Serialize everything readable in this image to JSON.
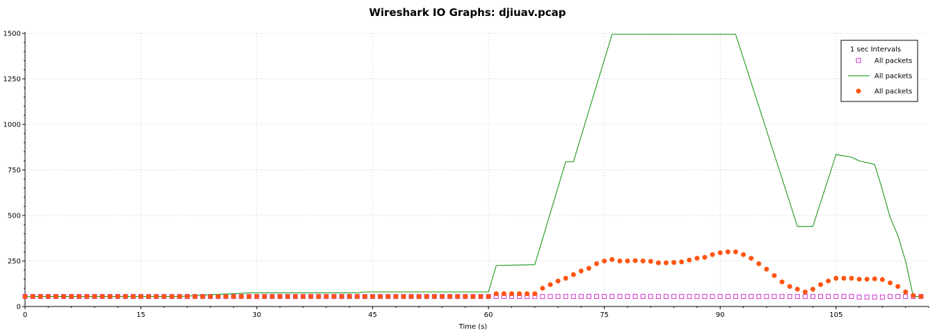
{
  "chart_data": {
    "type": "line",
    "title": "Wireshark IO Graphs: djiuav.pcap",
    "xlabel": "Time (s)",
    "ylabel": "",
    "xlim": [
      0,
      117
    ],
    "ylim": [
      0,
      1500
    ],
    "x_ticks": [
      0,
      15,
      30,
      45,
      60,
      75,
      90,
      105
    ],
    "y_ticks": [
      0,
      250,
      500,
      750,
      1000,
      1250,
      1500
    ],
    "grid": true,
    "legend_title": "1 sec Intervals",
    "legend_position": "top-right",
    "series": [
      {
        "name": "All packets",
        "style": "square-markers",
        "color": "#cc33cc",
        "x": [
          0,
          1,
          2,
          3,
          4,
          5,
          6,
          7,
          8,
          9,
          10,
          11,
          12,
          13,
          14,
          15,
          16,
          17,
          18,
          19,
          20,
          21,
          22,
          23,
          24,
          25,
          26,
          27,
          28,
          29,
          30,
          31,
          32,
          33,
          34,
          35,
          36,
          37,
          38,
          39,
          40,
          41,
          42,
          43,
          44,
          45,
          46,
          47,
          48,
          49,
          50,
          51,
          52,
          53,
          54,
          55,
          56,
          57,
          58,
          59,
          60,
          61,
          62,
          63,
          64,
          65,
          66,
          67,
          68,
          69,
          70,
          71,
          72,
          73,
          74,
          75,
          76,
          77,
          78,
          79,
          80,
          81,
          82,
          83,
          84,
          85,
          86,
          87,
          88,
          89,
          90,
          91,
          92,
          93,
          94,
          95,
          96,
          97,
          98,
          99,
          100,
          101,
          102,
          103,
          104,
          105,
          106,
          107,
          108,
          109,
          110,
          111,
          112,
          113,
          114,
          115,
          116
        ],
        "y": [
          55,
          55,
          55,
          55,
          55,
          55,
          55,
          55,
          55,
          55,
          55,
          55,
          55,
          55,
          55,
          55,
          55,
          55,
          55,
          55,
          55,
          55,
          55,
          55,
          55,
          55,
          55,
          55,
          55,
          55,
          55,
          55,
          55,
          55,
          55,
          55,
          55,
          55,
          55,
          55,
          55,
          55,
          55,
          55,
          55,
          55,
          55,
          55,
          55,
          55,
          55,
          55,
          55,
          55,
          55,
          55,
          55,
          55,
          55,
          55,
          55,
          55,
          55,
          55,
          55,
          55,
          55,
          55,
          55,
          55,
          55,
          55,
          55,
          55,
          55,
          55,
          55,
          55,
          55,
          55,
          55,
          55,
          55,
          55,
          55,
          55,
          55,
          55,
          55,
          55,
          55,
          55,
          55,
          55,
          55,
          55,
          55,
          55,
          55,
          55,
          55,
          55,
          55,
          55,
          55,
          55,
          55,
          55,
          52,
          52,
          52,
          52,
          55,
          55,
          55,
          55,
          55
        ]
      },
      {
        "name": "All packets",
        "style": "line",
        "color": "#2ca02c",
        "x": [
          0,
          20,
          24,
          27,
          29,
          33,
          38,
          43,
          44,
          50,
          55,
          60,
          61,
          66,
          70,
          71,
          76,
          82,
          88,
          92,
          100,
          102,
          105,
          107,
          108,
          110,
          111,
          112,
          113,
          114,
          115,
          116
        ],
        "y": [
          55,
          55,
          65,
          70,
          75,
          75,
          75,
          75,
          80,
          80,
          80,
          80,
          225,
          230,
          795,
          795,
          1495,
          1495,
          1495,
          1495,
          440,
          440,
          835,
          820,
          800,
          780,
          640,
          490,
          390,
          250,
          55,
          55
        ]
      },
      {
        "name": "All packets",
        "style": "circle-markers",
        "color": "#ff5511",
        "x": [
          0,
          1,
          2,
          3,
          4,
          5,
          6,
          7,
          8,
          9,
          10,
          11,
          12,
          13,
          14,
          15,
          16,
          17,
          18,
          19,
          20,
          21,
          22,
          23,
          24,
          25,
          26,
          27,
          28,
          29,
          30,
          31,
          32,
          33,
          34,
          35,
          36,
          37,
          38,
          39,
          40,
          41,
          42,
          43,
          44,
          45,
          46,
          47,
          48,
          49,
          50,
          51,
          52,
          53,
          54,
          55,
          56,
          57,
          58,
          59,
          60,
          61,
          62,
          63,
          64,
          65,
          66,
          67,
          68,
          69,
          70,
          71,
          72,
          73,
          74,
          75,
          76,
          77,
          78,
          79,
          80,
          81,
          82,
          83,
          84,
          85,
          86,
          87,
          88,
          89,
          90,
          91,
          92,
          93,
          94,
          95,
          96,
          97,
          98,
          99,
          100,
          101,
          102,
          103,
          104,
          105,
          106,
          107,
          108,
          109,
          110,
          111,
          112,
          113,
          114,
          115,
          116
        ],
        "y": [
          55,
          55,
          55,
          55,
          55,
          55,
          55,
          55,
          55,
          55,
          55,
          55,
          55,
          55,
          55,
          55,
          55,
          55,
          55,
          55,
          55,
          55,
          55,
          55,
          55,
          55,
          55,
          55,
          55,
          55,
          55,
          55,
          55,
          55,
          55,
          55,
          55,
          55,
          55,
          55,
          55,
          55,
          55,
          55,
          55,
          55,
          55,
          55,
          55,
          55,
          55,
          55,
          55,
          55,
          55,
          55,
          55,
          55,
          55,
          55,
          55,
          70,
          70,
          70,
          70,
          70,
          70,
          100,
          120,
          140,
          155,
          175,
          195,
          210,
          235,
          250,
          258,
          250,
          250,
          252,
          250,
          248,
          240,
          240,
          242,
          245,
          255,
          265,
          270,
          285,
          295,
          300,
          300,
          285,
          265,
          235,
          205,
          170,
          135,
          110,
          95,
          80,
          95,
          120,
          140,
          155,
          155,
          155,
          150,
          150,
          152,
          148,
          130,
          110,
          80,
          60,
          55
        ]
      }
    ]
  }
}
